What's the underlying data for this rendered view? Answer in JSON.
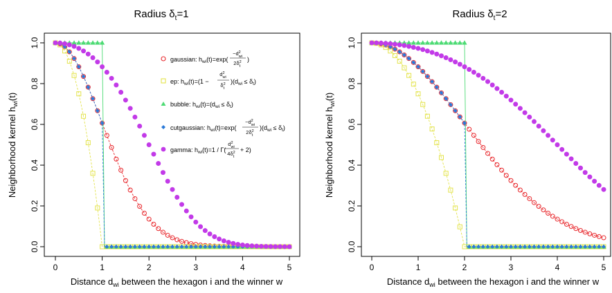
{
  "chart_data": [
    {
      "type": "scatter",
      "title_text": "Radius δ",
      "title_sub": "t",
      "title_eq": "=1",
      "radius": 1,
      "xlabel_pre": "Distance d",
      "xlabel_sub": "wi",
      "xlabel_post": " between the hexagon i and the winner w",
      "ylabel_pre": "Neighborhood kernel h",
      "ylabel_sub": "wi",
      "ylabel_post": "(t)",
      "xlim": [
        0,
        5
      ],
      "ylim": [
        0,
        1
      ],
      "xticks": [
        "0",
        "1",
        "2",
        "3",
        "4",
        "5"
      ],
      "yticks": [
        "0.0",
        "0.2",
        "0.4",
        "0.6",
        "0.8",
        "1.0"
      ],
      "legend_position": "top-right",
      "series": [
        {
          "name": "gaussian",
          "marker": "open-circle",
          "color": "#e8262b"
        },
        {
          "name": "ep",
          "marker": "open-square",
          "color": "#e3e34b"
        },
        {
          "name": "bubble",
          "marker": "filled-triangle",
          "color": "#4ddb74"
        },
        {
          "name": "cutgaussian",
          "marker": "filled-diamond",
          "color": "#2b79d8"
        },
        {
          "name": "gamma",
          "marker": "filled-circle",
          "color": "#c23ae8"
        }
      ]
    },
    {
      "type": "scatter",
      "title_text": "Radius δ",
      "title_sub": "t",
      "title_eq": "=2",
      "radius": 2,
      "xlabel_pre": "Distance d",
      "xlabel_sub": "wi",
      "xlabel_post": " between the hexagon i and the winner w",
      "ylabel_pre": "Neighborhood kernel h",
      "ylabel_sub": "wi",
      "ylabel_post": "(t)",
      "xlim": [
        0,
        5
      ],
      "ylim": [
        0,
        1
      ],
      "xticks": [
        "0",
        "1",
        "2",
        "3",
        "4",
        "5"
      ],
      "yticks": [
        "0.0",
        "0.2",
        "0.4",
        "0.6",
        "0.8",
        "1.0"
      ],
      "series": [
        {
          "name": "gaussian",
          "marker": "open-circle",
          "color": "#e8262b"
        },
        {
          "name": "ep",
          "marker": "open-square",
          "color": "#e3e34b"
        },
        {
          "name": "bubble",
          "marker": "filled-triangle",
          "color": "#4ddb74"
        },
        {
          "name": "cutgaussian",
          "marker": "filled-diamond",
          "color": "#2b79d8"
        },
        {
          "name": "gamma",
          "marker": "filled-circle",
          "color": "#c23ae8"
        }
      ]
    }
  ],
  "legend": {
    "gaussian": {
      "pre": "gaussian: h",
      "sub": "wi",
      "post": "(t)=exp(",
      "frac_num": "−d",
      "frac_num_sup": "2",
      "frac_num_sub": "wi",
      "frac_den": "2δ",
      "frac_den_sup": "2",
      "frac_den_sub": "t",
      "close": ")"
    },
    "ep": {
      "pre": "ep: h",
      "sub": "wi",
      "post": "(t)=(1 −",
      "frac_num": "d",
      "frac_num_sup": "2",
      "frac_num_sub": "wi",
      "frac_den": "δ",
      "frac_den_sup": "2",
      "frac_den_sub": "t",
      "close_pre": ")(d",
      "close_sub": "wi",
      "close_post": " ≤ δ",
      "close_sub2": "t",
      "close_end": ")"
    },
    "bubble": {
      "pre": "bubble: h",
      "sub": "wi",
      "post": "(t)=(d",
      "sub2": "wi",
      "post2": " ≤ δ",
      "sub3": "t",
      "end": ")"
    },
    "cutgaussian": {
      "pre": "cutgaussian: h",
      "sub": "wi",
      "post": "(t)=exp(",
      "frac_num": "−d",
      "frac_num_sup": "2",
      "frac_num_sub": "wi",
      "frac_den": "2δ",
      "frac_den_sup": "2",
      "frac_den_sub": "t",
      "close_pre": ")(d",
      "close_sub": "wi",
      "close_post": " ≤ δ",
      "close_sub2": "t",
      "close_end": ")"
    },
    "gamma": {
      "pre": "gamma: h",
      "sub": "wi",
      "post": "(t)=1 / Γ(",
      "frac_num": "d",
      "frac_num_sup": "2",
      "frac_num_sub": "wi",
      "frac_den": "4δ",
      "frac_den_sup": "2",
      "frac_den_sub": "t",
      "close": " + 2)"
    }
  }
}
